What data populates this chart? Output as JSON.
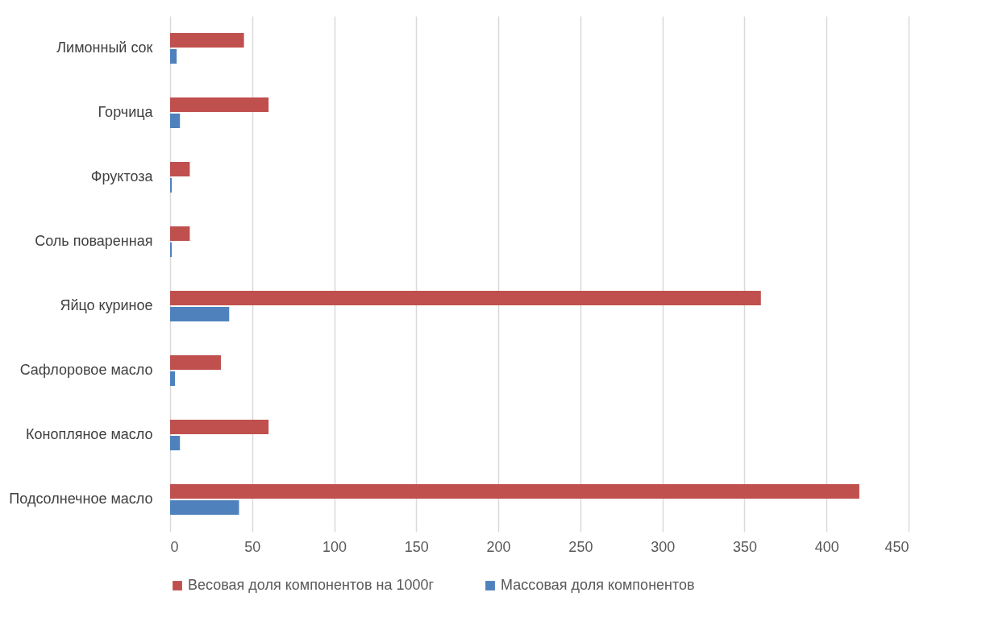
{
  "chart_data": {
    "type": "bar",
    "orientation": "horizontal",
    "categories": [
      "Лимонный сок",
      "Горчица",
      "Фруктоза",
      "Соль поваренная",
      "Яйцо куриное",
      "Сафлоровое масло",
      "Конопляное масло",
      "Подсолнечное масло"
    ],
    "series": [
      {
        "name": "Весовая доля компонентов на 1000г",
        "color": "#c0504d",
        "values": [
          45,
          60,
          12,
          12,
          360,
          31,
          60,
          420
        ]
      },
      {
        "name": "Массовая доля компонентов",
        "color": "#4f81bd",
        "values": [
          4,
          6,
          1,
          1,
          36,
          3,
          6,
          42
        ]
      }
    ],
    "xlim": [
      0,
      450
    ],
    "xticks": [
      0,
      50,
      100,
      150,
      200,
      250,
      300,
      350,
      400,
      450
    ],
    "grid": "x",
    "legend": "bottom"
  }
}
